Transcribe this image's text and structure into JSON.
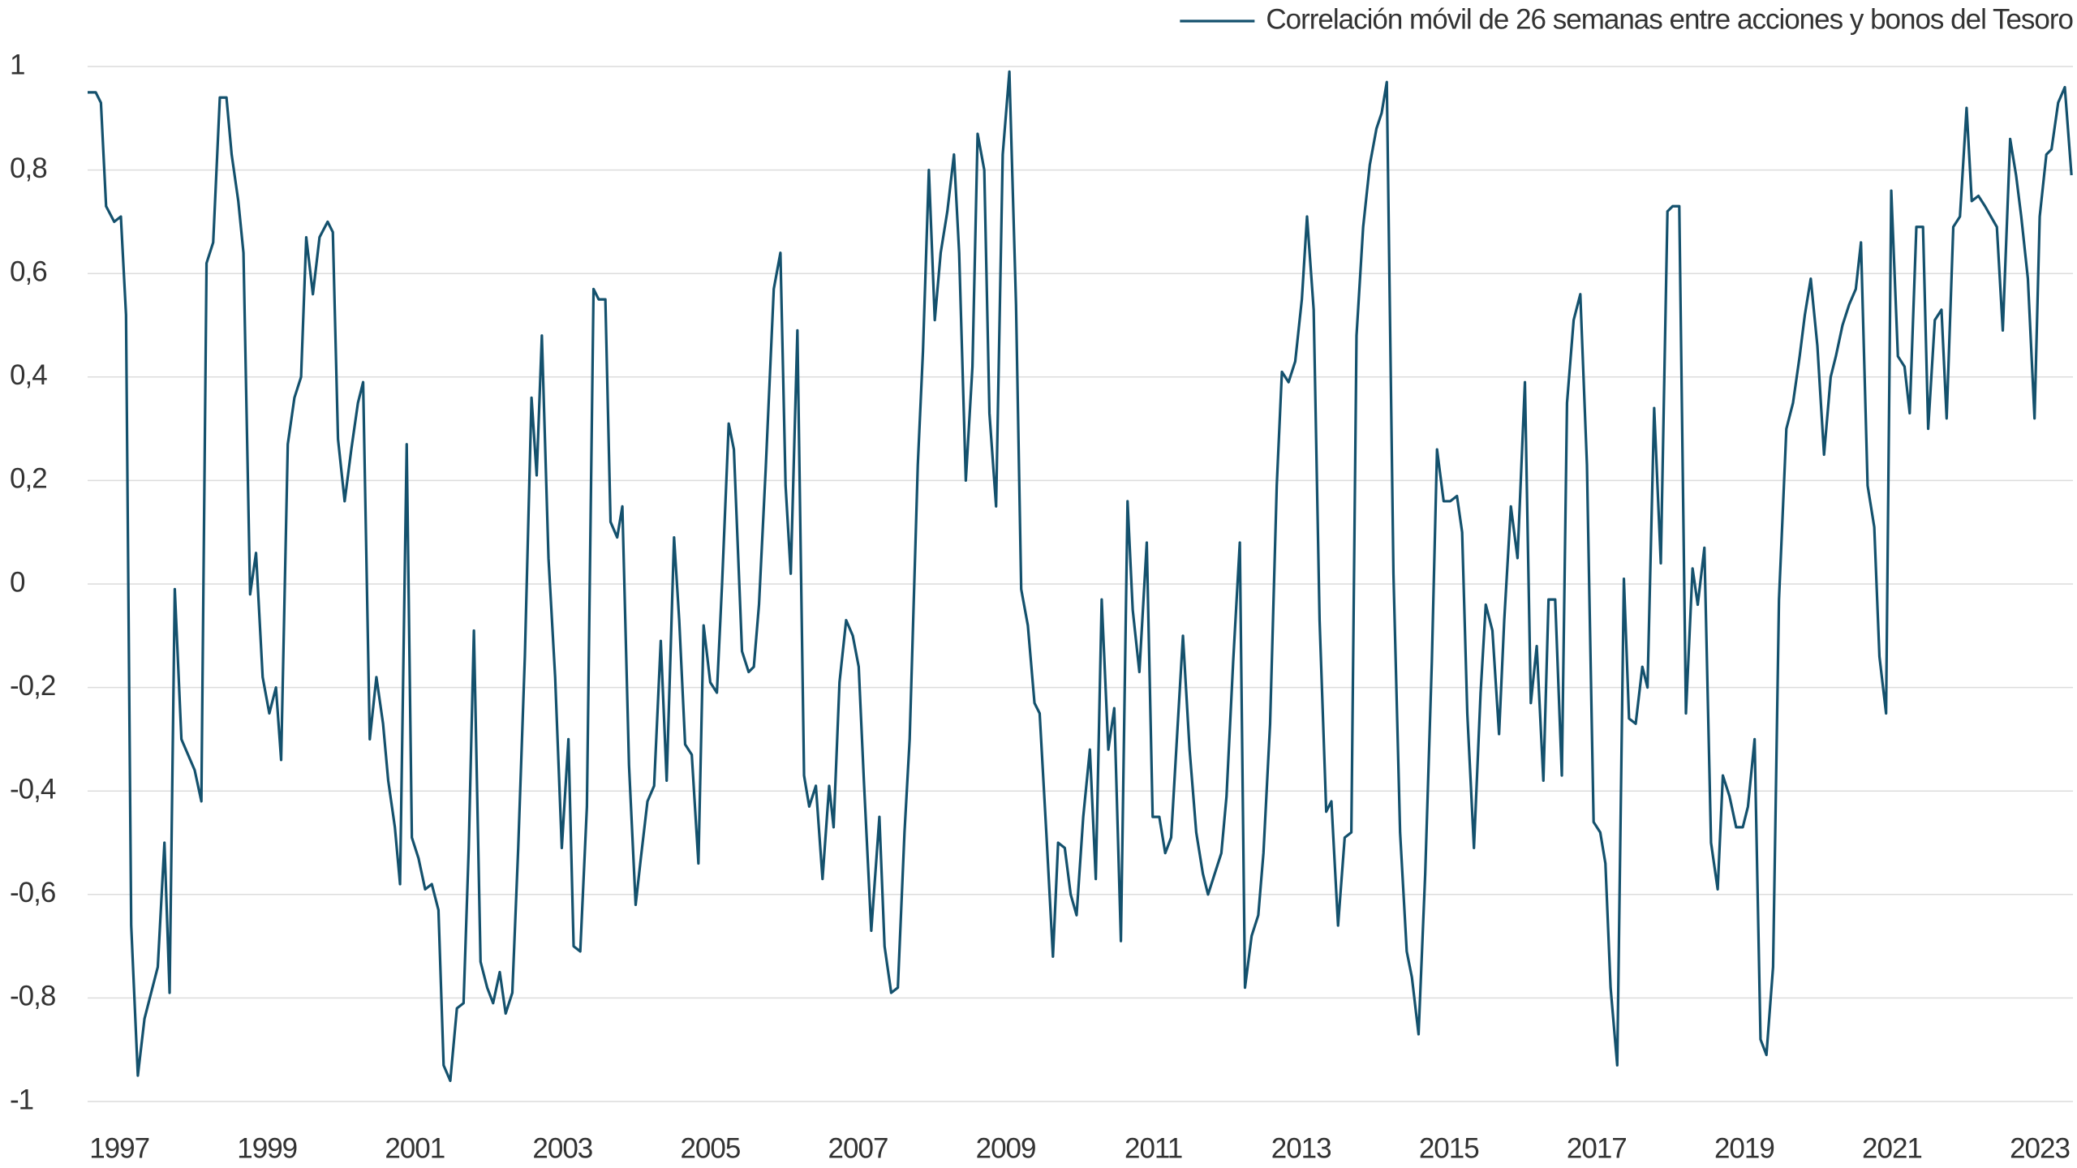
{
  "chart_data": {
    "type": "line",
    "x": [
      1996.57,
      1996.68,
      1996.75,
      1996.82,
      1996.93,
      1997.02,
      1997.09,
      1997.16,
      1997.25,
      1997.34,
      1997.43,
      1997.52,
      1997.61,
      1997.68,
      1997.75,
      1997.84,
      1997.93,
      1998.02,
      1998.11,
      1998.18,
      1998.27,
      1998.36,
      1998.45,
      1998.52,
      1998.61,
      1998.68,
      1998.77,
      1998.85,
      1998.94,
      1999.03,
      1999.12,
      1999.19,
      1999.28,
      1999.37,
      1999.46,
      1999.53,
      1999.62,
      1999.71,
      1999.82,
      1999.89,
      1999.96,
      2000.05,
      2000.14,
      2000.23,
      2000.3,
      2000.39,
      2000.48,
      2000.57,
      2000.64,
      2000.73,
      2000.8,
      2000.89,
      2000.96,
      2001.05,
      2001.14,
      2001.23,
      2001.32,
      2001.39,
      2001.48,
      2001.57,
      2001.66,
      2001.73,
      2001.8,
      2001.89,
      2001.98,
      2002.06,
      2002.15,
      2002.23,
      2002.32,
      2002.4,
      2002.49,
      2002.58,
      2002.65,
      2002.72,
      2002.81,
      2002.9,
      2002.99,
      2003.08,
      2003.15,
      2003.24,
      2003.33,
      2003.42,
      2003.49,
      2003.58,
      2003.65,
      2003.74,
      2003.81,
      2003.9,
      2003.99,
      2004.06,
      2004.15,
      2004.24,
      2004.33,
      2004.41,
      2004.51,
      2004.58,
      2004.66,
      2004.75,
      2004.84,
      2004.91,
      2005.0,
      2005.09,
      2005.16,
      2005.25,
      2005.32,
      2005.43,
      2005.52,
      2005.59,
      2005.66,
      2005.75,
      2005.86,
      2005.95,
      2006.02,
      2006.09,
      2006.18,
      2006.27,
      2006.34,
      2006.43,
      2006.52,
      2006.61,
      2006.67,
      2006.75,
      2006.84,
      2006.93,
      2007.01,
      2007.08,
      2007.18,
      2007.29,
      2007.36,
      2007.45,
      2007.54,
      2007.63,
      2007.7,
      2007.81,
      2007.88,
      2007.96,
      2008.04,
      2008.12,
      2008.21,
      2008.3,
      2008.37,
      2008.46,
      2008.55,
      2008.62,
      2008.71,
      2008.78,
      2008.87,
      2008.96,
      2009.05,
      2009.14,
      2009.21,
      2009.3,
      2009.39,
      2009.46,
      2009.55,
      2009.64,
      2009.71,
      2009.8,
      2009.88,
      2009.96,
      2010.05,
      2010.14,
      2010.22,
      2010.3,
      2010.39,
      2010.47,
      2010.56,
      2010.65,
      2010.72,
      2010.81,
      2010.91,
      2010.99,
      2011.08,
      2011.16,
      2011.24,
      2011.33,
      2011.4,
      2011.49,
      2011.58,
      2011.67,
      2011.74,
      2011.83,
      2011.92,
      2011.99,
      2012.08,
      2012.17,
      2012.24,
      2012.33,
      2012.42,
      2012.49,
      2012.58,
      2012.67,
      2012.74,
      2012.83,
      2012.92,
      2013.01,
      2013.08,
      2013.17,
      2013.25,
      2013.34,
      2013.41,
      2013.5,
      2013.59,
      2013.68,
      2013.75,
      2013.84,
      2013.93,
      2014.02,
      2014.09,
      2014.16,
      2014.25,
      2014.34,
      2014.43,
      2014.5,
      2014.59,
      2014.68,
      2014.77,
      2014.84,
      2014.93,
      2015.02,
      2015.11,
      2015.18,
      2015.25,
      2015.34,
      2015.43,
      2015.5,
      2015.59,
      2015.68,
      2015.75,
      2015.84,
      2015.93,
      2016.03,
      2016.11,
      2016.19,
      2016.28,
      2016.35,
      2016.44,
      2016.53,
      2016.6,
      2016.69,
      2016.78,
      2016.87,
      2016.96,
      2017.05,
      2017.12,
      2017.19,
      2017.28,
      2017.37,
      2017.44,
      2017.53,
      2017.62,
      2017.69,
      2017.78,
      2017.87,
      2017.96,
      2018.03,
      2018.12,
      2018.21,
      2018.3,
      2018.37,
      2018.46,
      2018.55,
      2018.64,
      2018.71,
      2018.8,
      2018.89,
      2018.98,
      2019.05,
      2019.14,
      2019.22,
      2019.3,
      2019.39,
      2019.47,
      2019.57,
      2019.66,
      2019.75,
      2019.82,
      2019.9,
      2019.99,
      2020.08,
      2020.17,
      2020.24,
      2020.33,
      2020.42,
      2020.51,
      2020.58,
      2020.67,
      2020.76,
      2020.83,
      2020.92,
      2020.99,
      2021.08,
      2021.17,
      2021.24,
      2021.33,
      2021.42,
      2021.49,
      2021.58,
      2021.67,
      2021.74,
      2021.83,
      2021.92,
      2022.01,
      2022.08,
      2022.17,
      2022.26,
      2022.34,
      2022.42,
      2022.5,
      2022.6,
      2022.68,
      2022.75,
      2022.84,
      2022.93,
      2023.0,
      2023.09,
      2023.16,
      2023.25,
      2023.34,
      2023.43
    ],
    "series": [
      {
        "name": "Correlación móvil de 26 semanas entre acciones y bonos del Tesoro",
        "color": "#14516d",
        "values": [
          0.95,
          0.95,
          0.93,
          0.73,
          0.7,
          0.71,
          0.52,
          -0.66,
          -0.95,
          -0.84,
          -0.79,
          -0.74,
          -0.5,
          -0.79,
          -0.01,
          -0.3,
          -0.33,
          -0.36,
          -0.42,
          0.62,
          0.66,
          0.94,
          0.94,
          0.83,
          0.74,
          0.64,
          -0.02,
          0.06,
          -0.18,
          -0.25,
          -0.2,
          -0.34,
          0.27,
          0.36,
          0.4,
          0.67,
          0.56,
          0.67,
          0.7,
          0.68,
          0.28,
          0.16,
          0.26,
          0.35,
          0.39,
          -0.3,
          -0.18,
          -0.27,
          -0.38,
          -0.47,
          -0.58,
          0.27,
          -0.49,
          -0.53,
          -0.59,
          -0.58,
          -0.63,
          -0.93,
          -0.96,
          -0.82,
          -0.81,
          -0.51,
          -0.09,
          -0.73,
          -0.78,
          -0.81,
          -0.75,
          -0.83,
          -0.79,
          -0.51,
          -0.14,
          0.36,
          0.21,
          0.48,
          0.05,
          -0.18,
          -0.51,
          -0.3,
          -0.7,
          -0.71,
          -0.43,
          0.57,
          0.55,
          0.55,
          0.12,
          0.09,
          0.15,
          -0.35,
          -0.62,
          -0.53,
          -0.42,
          -0.39,
          -0.11,
          -0.38,
          0.09,
          -0.07,
          -0.31,
          -0.33,
          -0.54,
          -0.08,
          -0.19,
          -0.21,
          0.0,
          0.31,
          0.26,
          -0.13,
          -0.17,
          -0.16,
          -0.04,
          0.22,
          0.57,
          0.64,
          0.19,
          0.02,
          0.49,
          -0.37,
          -0.43,
          -0.39,
          -0.57,
          -0.39,
          -0.47,
          -0.19,
          -0.07,
          -0.1,
          -0.16,
          -0.38,
          -0.67,
          -0.45,
          -0.7,
          -0.79,
          -0.78,
          -0.48,
          -0.3,
          0.23,
          0.45,
          0.8,
          0.51,
          0.64,
          0.72,
          0.83,
          0.64,
          0.2,
          0.42,
          0.87,
          0.8,
          0.33,
          0.15,
          0.83,
          0.99,
          0.54,
          -0.01,
          -0.08,
          -0.23,
          -0.25,
          -0.48,
          -0.72,
          -0.5,
          -0.51,
          -0.6,
          -0.64,
          -0.45,
          -0.32,
          -0.57,
          -0.03,
          -0.32,
          -0.24,
          -0.69,
          0.16,
          -0.05,
          -0.17,
          0.08,
          -0.45,
          -0.45,
          -0.52,
          -0.49,
          -0.27,
          -0.1,
          -0.32,
          -0.48,
          -0.56,
          -0.6,
          -0.56,
          -0.52,
          -0.41,
          -0.15,
          0.08,
          -0.78,
          -0.68,
          -0.64,
          -0.52,
          -0.27,
          0.19,
          0.41,
          0.39,
          0.43,
          0.55,
          0.71,
          0.53,
          -0.07,
          -0.44,
          -0.42,
          -0.66,
          -0.49,
          -0.48,
          0.48,
          0.69,
          0.81,
          0.88,
          0.91,
          0.97,
          0.02,
          -0.48,
          -0.71,
          -0.76,
          -0.87,
          -0.56,
          -0.15,
          0.26,
          0.16,
          0.16,
          0.17,
          0.1,
          -0.25,
          -0.51,
          -0.21,
          -0.04,
          -0.09,
          -0.29,
          -0.07,
          0.15,
          0.05,
          0.39,
          -0.23,
          -0.12,
          -0.38,
          -0.03,
          -0.03,
          -0.37,
          0.35,
          0.51,
          0.56,
          0.23,
          -0.46,
          -0.48,
          -0.54,
          -0.78,
          -0.93,
          0.01,
          -0.26,
          -0.27,
          -0.16,
          -0.2,
          0.34,
          0.04,
          0.72,
          0.73,
          0.73,
          -0.25,
          0.03,
          -0.04,
          0.07,
          -0.5,
          -0.59,
          -0.37,
          -0.41,
          -0.47,
          -0.47,
          -0.43,
          -0.3,
          -0.88,
          -0.91,
          -0.74,
          -0.03,
          0.3,
          0.35,
          0.44,
          0.52,
          0.59,
          0.46,
          0.25,
          0.4,
          0.44,
          0.5,
          0.54,
          0.57,
          0.66,
          0.19,
          0.11,
          -0.14,
          -0.25,
          0.76,
          0.44,
          0.42,
          0.33,
          0.69,
          0.69,
          0.3,
          0.51,
          0.53,
          0.32,
          0.69,
          0.71,
          0.92,
          0.74,
          0.75,
          0.73,
          0.71,
          0.69,
          0.49,
          0.86,
          0.79,
          0.71,
          0.59,
          0.32,
          0.71,
          0.83,
          0.84,
          0.93,
          0.96,
          0.79
        ]
      }
    ],
    "xlim": [
      1996.57,
      2023.45
    ],
    "xticks": [
      1997,
      1999,
      2001,
      2003,
      2005,
      2007,
      2009,
      2011,
      2013,
      2015,
      2017,
      2019,
      2021,
      2023
    ],
    "ylim": [
      -1,
      1
    ],
    "yticks": [
      -1,
      {
        "value": -0.8,
        "label": "-0,8"
      },
      {
        "value": -0.6,
        "label": "-0,6"
      },
      {
        "value": -0.4,
        "label": "-0,4"
      },
      {
        "value": -0.2,
        "label": "-0,2"
      },
      0,
      {
        "value": 0.2,
        "label": "0,2"
      },
      {
        "value": 0.4,
        "label": "0,4"
      },
      {
        "value": 0.6,
        "label": "0,6"
      },
      {
        "value": 0.8,
        "label": "0,8"
      },
      1
    ],
    "grid": true,
    "legend": "top-right"
  }
}
